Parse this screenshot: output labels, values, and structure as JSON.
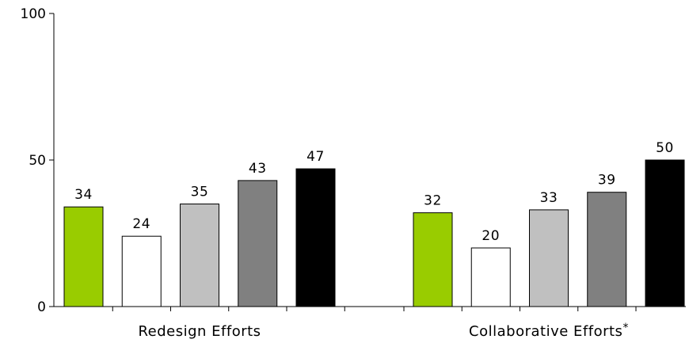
{
  "chart_data": {
    "type": "bar",
    "categories": [
      "Redesign Efforts",
      "Collaborative Efforts"
    ],
    "category_suffixes": [
      "",
      "*"
    ],
    "series": [
      {
        "values": [
          34,
          32
        ],
        "color": "#99cc00"
      },
      {
        "values": [
          24,
          20
        ],
        "color": "#ffffff"
      },
      {
        "values": [
          35,
          33
        ],
        "color": "#c0c0c0"
      },
      {
        "values": [
          43,
          39
        ],
        "color": "#808080"
      },
      {
        "values": [
          47,
          50
        ],
        "color": "#000000"
      }
    ],
    "ylim": [
      0,
      100
    ],
    "yticks": [
      "0",
      "50",
      "100"
    ],
    "grid": false,
    "data_labels": true
  }
}
